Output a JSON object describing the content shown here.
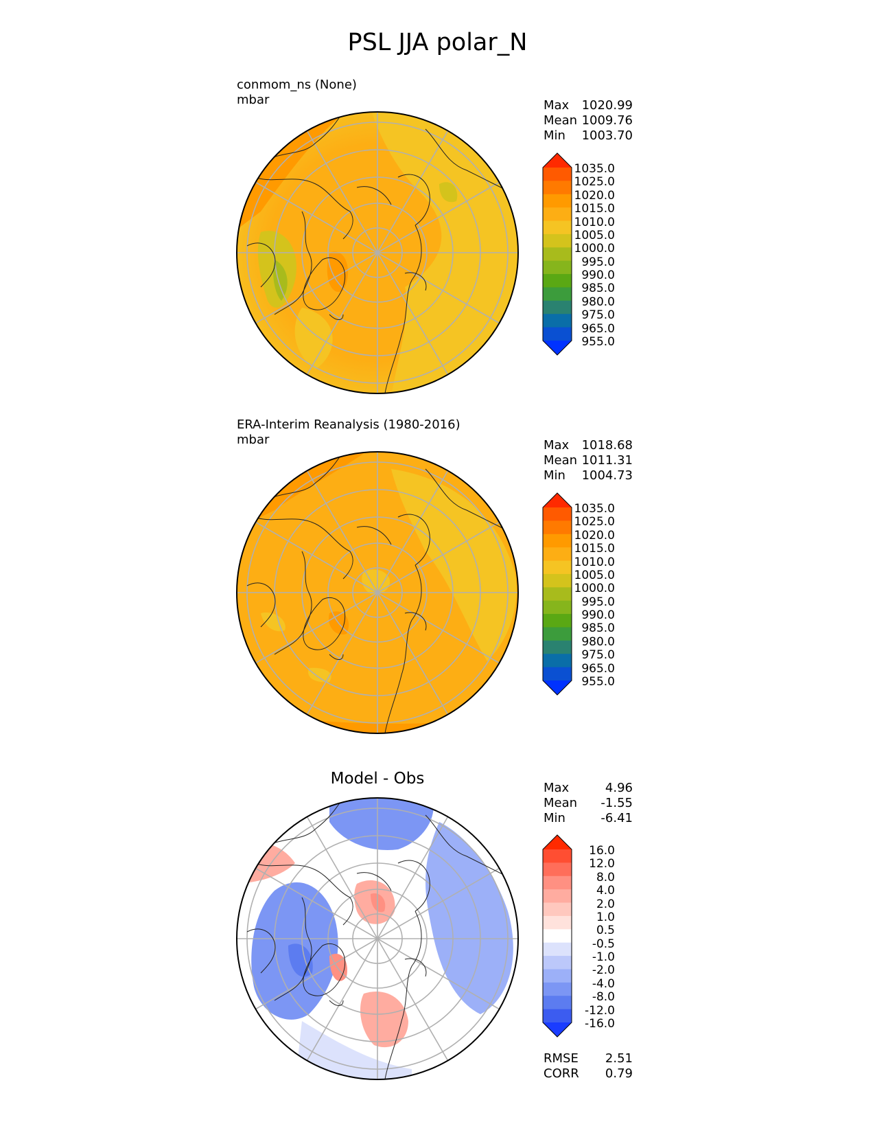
{
  "figure": {
    "title": "PSL JJA polar_N"
  },
  "panels": [
    {
      "id": "test",
      "title_line1": "conmom_ns (None)",
      "title_line2": "mbar",
      "stats": [
        {
          "label": "Max",
          "value": "1020.99"
        },
        {
          "label": "Mean",
          "value": "1009.76"
        },
        {
          "label": "Min",
          "value": "1003.70"
        }
      ]
    },
    {
      "id": "reference",
      "title_line1": "ERA-Interim Reanalysis (1980-2016)",
      "title_line2": "mbar",
      "stats": [
        {
          "label": "Max",
          "value": "1018.68"
        },
        {
          "label": "Mean",
          "value": "1011.31"
        },
        {
          "label": "Min",
          "value": "1004.73"
        }
      ]
    },
    {
      "id": "difference",
      "title": "Model - Obs",
      "stats": [
        {
          "label": "Max",
          "value": "4.96"
        },
        {
          "label": "Mean",
          "value": "-1.55"
        },
        {
          "label": "Min",
          "value": "-6.41"
        }
      ],
      "metrics": [
        {
          "label": "RMSE",
          "value": "2.51"
        },
        {
          "label": "CORR",
          "value": "0.79"
        }
      ]
    }
  ],
  "colorbars": {
    "field": {
      "labels": [
        "1035.0",
        "1025.0",
        "1020.0",
        "1015.0",
        "1010.0",
        "1005.0",
        "1000.0",
        "995.0",
        "990.0",
        "985.0",
        "980.0",
        "975.0",
        "965.0",
        "955.0"
      ],
      "colors": [
        "#ff2a00",
        "#ff5a00",
        "#ff7a00",
        "#ff9a00",
        "#fdae14",
        "#f5c423",
        "#d4c31c",
        "#a8bb1c",
        "#86b51c",
        "#5aa814",
        "#3c9c3c",
        "#2a8270",
        "#0a6ea8",
        "#0a50d2",
        "#0032ff"
      ]
    },
    "diff": {
      "labels": [
        "16.0",
        "12.0",
        "8.0",
        "4.0",
        "2.0",
        "1.0",
        "0.5",
        "-0.5",
        "-1.0",
        "-2.0",
        "-4.0",
        "-8.0",
        "-12.0",
        "-16.0"
      ],
      "colors": [
        "#ff2a00",
        "#ff4e32",
        "#ff6e5a",
        "#ff9082",
        "#ffaca0",
        "#ffc8be",
        "#ffe2dc",
        "#ffffff",
        "#dce2fc",
        "#bcc8fa",
        "#9cb0f8",
        "#7c96f4",
        "#5c7cf0",
        "#3c5cf0",
        "#1a3cff"
      ]
    }
  },
  "chart_data": [
    {
      "type": "heatmap",
      "projection": "north polar stereographic",
      "title": "conmom_ns (None)",
      "units": "mbar",
      "max": 1020.99,
      "mean": 1009.76,
      "min": 1003.7,
      "levels": [
        955,
        965,
        975,
        980,
        985,
        990,
        995,
        1000,
        1005,
        1010,
        1015,
        1020,
        1025,
        1035
      ]
    },
    {
      "type": "heatmap",
      "projection": "north polar stereographic",
      "title": "ERA-Interim Reanalysis (1980-2016)",
      "units": "mbar",
      "max": 1018.68,
      "mean": 1011.31,
      "min": 1004.73,
      "levels": [
        955,
        965,
        975,
        980,
        985,
        990,
        995,
        1000,
        1005,
        1010,
        1015,
        1020,
        1025,
        1035
      ]
    },
    {
      "type": "heatmap",
      "projection": "north polar stereographic",
      "title": "Model - Obs",
      "max": 4.96,
      "mean": -1.55,
      "min": -6.41,
      "rmse": 2.51,
      "corr": 0.79,
      "levels": [
        -16,
        -12,
        -8,
        -4,
        -2,
        -1,
        -0.5,
        0.5,
        1,
        2,
        4,
        8,
        12,
        16
      ]
    }
  ]
}
